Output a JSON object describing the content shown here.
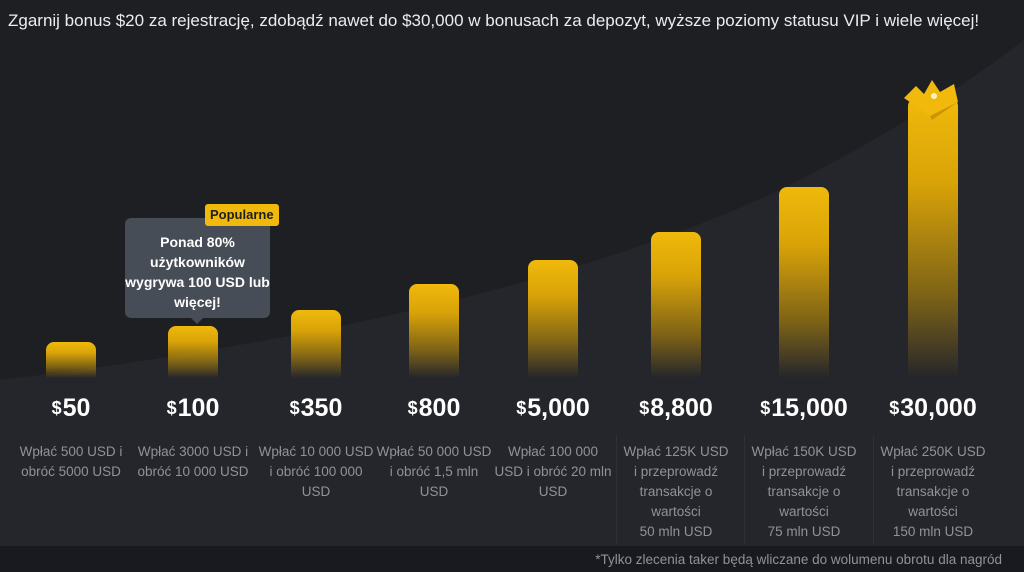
{
  "headline": "Zgarnij bonus $20 za rejestrację, zdobądź nawet do $30,000 w bonusach za depozyt, wyższe poziomy statusu VIP i wiele więcej!",
  "colors": {
    "background": "#1e1f23",
    "accent": "#f0b90b",
    "tooltip": "#474d57",
    "muted_text": "#8e939b"
  },
  "tooltip": {
    "badge": "Popularne",
    "text": "Ponad 80% użytkowników wygrywa 100 USD lub więcej!"
  },
  "tiers": [
    {
      "currency": "$",
      "amount": "50",
      "description": "Wpłać 500 USD i obróć 5000 USD",
      "level": 0.07
    },
    {
      "currency": "$",
      "amount": "100",
      "description": "Wpłać 3000 USD i obróć 10 000 USD",
      "level": 0.13
    },
    {
      "currency": "$",
      "amount": "350",
      "description": "Wpłać 10 000 USD i obróć 100 000 USD",
      "level": 0.19
    },
    {
      "currency": "$",
      "amount": "800",
      "description": "Wpłać 50 000 USD i obróć 1,5 mln USD",
      "level": 0.29
    },
    {
      "currency": "$",
      "amount": "5,000",
      "description": "Wpłać 100 000 USD i obróć 20 mln USD",
      "level": 0.38
    },
    {
      "currency": "$",
      "amount": "8,800",
      "description": "Wpłać 125K USD\ni przeprowadź\ntransakcje o\nwartości\n50 mln USD",
      "level": 0.49
    },
    {
      "currency": "$",
      "amount": "15,000",
      "description": "Wpłać 150K USD\ni przeprowadź\ntransakcje o\nwartości\n75 mln USD",
      "level": 0.66
    },
    {
      "currency": "$",
      "amount": "30,000",
      "description": "Wpłać 250K USD\ni przeprowadź\ntransakcje o\nwartości\n150 mln USD",
      "level": 1.0
    }
  ],
  "crown_icon": "crown-icon",
  "footnote": "*Tylko zlecenia taker będą wliczane do wolumenu obrotu dla nagród"
}
